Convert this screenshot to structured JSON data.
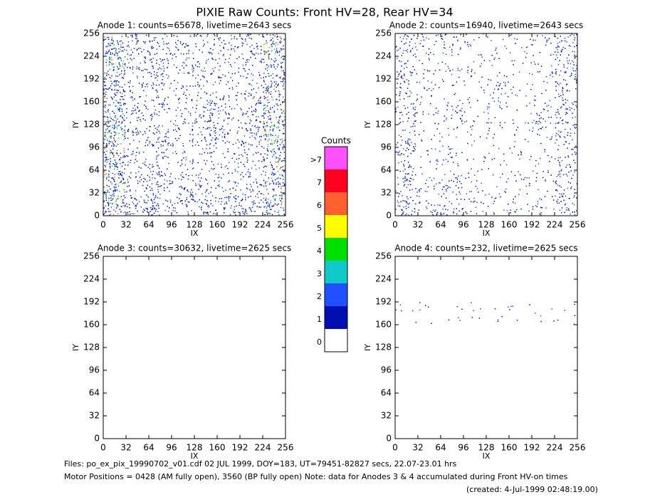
{
  "title": "PIXIE Raw Counts:  Front HV=28, Rear HV=34",
  "panels": [
    {
      "title": "Anode 1: counts=65678, livetime=2643 secs",
      "xlabel": "IX",
      "ylabel": "IY",
      "xlim": [
        0,
        256
      ],
      "ylim": [
        0,
        256
      ],
      "xticks": [
        0,
        32,
        64,
        96,
        128,
        160,
        192,
        224,
        256
      ],
      "yticks": [
        0,
        32,
        64,
        96,
        128,
        160,
        192,
        224,
        256
      ],
      "density": [
        [
          0.8,
          0.45,
          0.4,
          0.35,
          0.3,
          0.35,
          0.4,
          0.75
        ],
        [
          0.85,
          0.35,
          0.5,
          0.3,
          0.3,
          0.3,
          0.35,
          0.7
        ],
        [
          0.8,
          0.3,
          0.3,
          0.25,
          0.3,
          0.25,
          0.3,
          0.65
        ],
        [
          0.85,
          0.35,
          0.3,
          0.25,
          0.5,
          0.3,
          0.45,
          0.75
        ],
        [
          0.9,
          0.35,
          0.5,
          0.3,
          0.45,
          0.3,
          0.5,
          0.85
        ],
        [
          0.8,
          0.3,
          0.3,
          0.25,
          0.25,
          0.25,
          0.3,
          0.7
        ],
        [
          0.85,
          0.35,
          0.5,
          0.3,
          0.3,
          0.3,
          0.35,
          0.65
        ],
        [
          0.85,
          0.5,
          0.5,
          0.45,
          0.45,
          0.45,
          0.45,
          0.75
        ]
      ]
    },
    {
      "title": "Anode 2: counts=16940, livetime=2643 secs",
      "xlabel": "IX",
      "ylabel": "IY",
      "xlim": [
        0,
        256
      ],
      "ylim": [
        0,
        256
      ],
      "xticks": [
        0,
        32,
        64,
        96,
        128,
        160,
        192,
        224,
        256
      ],
      "yticks": [
        0,
        32,
        64,
        96,
        128,
        160,
        192,
        224,
        256
      ],
      "density": [
        [
          0.4,
          0.2,
          0.3,
          0.15,
          0.1,
          0.15,
          0.2,
          0.45
        ],
        [
          0.35,
          0.15,
          0.15,
          0.15,
          0.1,
          0.1,
          0.15,
          0.4
        ],
        [
          0.3,
          0.15,
          0.1,
          0.1,
          0.3,
          0.1,
          0.1,
          0.35
        ],
        [
          0.4,
          0.15,
          0.3,
          0.1,
          0.2,
          0.1,
          0.3,
          0.45
        ],
        [
          0.3,
          0.1,
          0.1,
          0.1,
          0.1,
          0.1,
          0.15,
          0.35
        ],
        [
          0.35,
          0.15,
          0.2,
          0.1,
          0.1,
          0.1,
          0.1,
          0.3
        ],
        [
          0.4,
          0.2,
          0.35,
          0.15,
          0.1,
          0.15,
          0.15,
          0.35
        ],
        [
          0.45,
          0.25,
          0.3,
          0.2,
          0.15,
          0.15,
          0.2,
          0.4
        ]
      ]
    },
    {
      "title": "Anode 3: counts=30632, livetime=2625 secs",
      "xlabel": "IX",
      "ylabel": "IY",
      "xlim": [
        0,
        256
      ],
      "ylim": [
        0,
        256
      ],
      "xticks": [
        0,
        32,
        64,
        96,
        128,
        160,
        192,
        224,
        256
      ],
      "yticks": [
        0,
        32,
        64,
        96,
        128,
        160,
        192,
        224,
        256
      ],
      "density": [
        [
          0,
          0,
          0,
          0,
          0,
          0,
          0,
          0
        ],
        [
          0,
          0,
          0,
          0,
          0,
          0,
          0,
          0
        ],
        [
          0,
          0,
          0,
          0,
          0,
          0,
          0,
          0
        ],
        [
          0,
          0,
          0,
          0,
          0,
          0,
          0,
          0
        ],
        [
          0,
          0,
          0,
          0,
          0,
          0,
          0,
          0
        ],
        [
          0,
          0,
          0,
          0,
          0,
          0,
          0,
          0
        ],
        [
          0,
          0,
          0,
          0,
          0,
          0,
          0,
          0
        ],
        [
          0,
          0,
          0,
          0,
          0,
          0,
          0,
          0
        ]
      ]
    },
    {
      "title": "Anode 4: counts=232, livetime=2625 secs",
      "xlabel": "IX",
      "ylabel": "IY",
      "xlim": [
        0,
        256
      ],
      "ylim": [
        0,
        256
      ],
      "xticks": [
        0,
        32,
        64,
        96,
        128,
        160,
        192,
        224,
        256
      ],
      "yticks": [
        0,
        32,
        64,
        96,
        128,
        160,
        192,
        224,
        256
      ],
      "density": [
        [
          0,
          0,
          0,
          0,
          0,
          0,
          0,
          0
        ],
        [
          0,
          0,
          0,
          0,
          0,
          0,
          0,
          0
        ],
        [
          0.05,
          0.05,
          0.05,
          0.05,
          0.05,
          0.05,
          0.05,
          0.05
        ],
        [
          0,
          0,
          0,
          0,
          0,
          0,
          0,
          0
        ],
        [
          0,
          0,
          0,
          0,
          0,
          0,
          0,
          0
        ],
        [
          0,
          0,
          0,
          0,
          0,
          0,
          0,
          0
        ],
        [
          0,
          0,
          0,
          0,
          0,
          0,
          0,
          0
        ],
        [
          0,
          0,
          0,
          0,
          0,
          0,
          0,
          0
        ]
      ]
    }
  ],
  "colorbar": {
    "title": "Counts",
    "labels": [
      ">7",
      "7",
      "6",
      "5",
      "4",
      "3",
      "2",
      "1",
      "0"
    ],
    "colors": [
      "#ff50ff",
      "#ff0020",
      "#ff6030",
      "#ffff00",
      "#00e000",
      "#10c8c8",
      "#2050ff",
      "#0010b0",
      "#ffffff"
    ]
  },
  "footer": [
    "Files: po_ex_pix_19990702_v01.cdf    02 JUL 1999, DOY=183, UT=79451-82827 secs, 22.07-23.01 hrs",
    "Motor Positions = 0428 (AM fully open), 3560 (BP fully open)    Note: data for Anodes 3 & 4 accumulated during Front HV-on times",
    "(created:  4-Jul-1999 02:48:19.00)"
  ]
}
